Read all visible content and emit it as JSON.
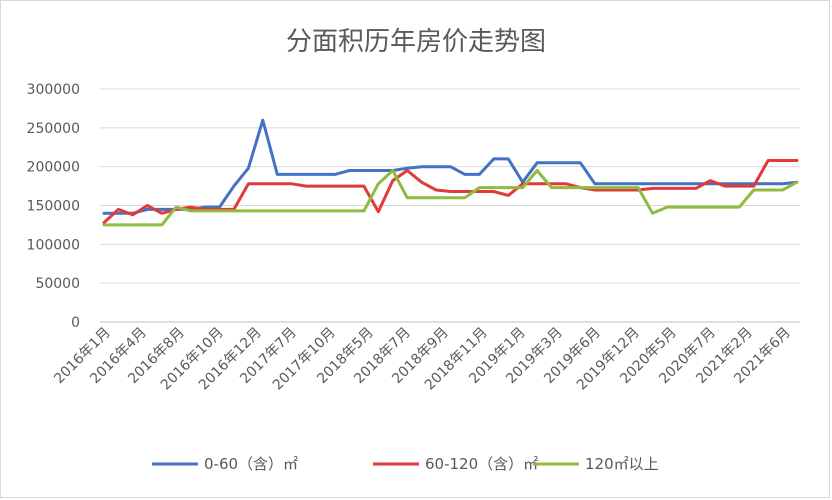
{
  "chart_data": {
    "type": "line",
    "title": "分面积历年房价走势图",
    "xlabel": "",
    "ylabel": "",
    "ylim": [
      0,
      300000
    ],
    "yticks": [
      0,
      50000,
      100000,
      150000,
      200000,
      250000,
      300000
    ],
    "grid": true,
    "legend_position": "bottom",
    "x_tick_labels": [
      "2016年1月",
      "2016年4月",
      "2016年8月",
      "2016年10月",
      "2016年12月",
      "2017年7月",
      "2017年10月",
      "2018年5月",
      "2018年7月",
      "2018年9月",
      "2018年11月",
      "2019年1月",
      "2019年3月",
      "2019年6月",
      "2019年12月",
      "2020年5月",
      "2020年7月",
      "2021年2月",
      "2021年6月"
    ],
    "n_points": 49,
    "series": [
      {
        "name": "0-60（含）㎡",
        "color": "#4472c4",
        "values": [
          140000,
          140000,
          140000,
          145000,
          145000,
          145000,
          145000,
          148000,
          148000,
          175000,
          198000,
          260000,
          190000,
          190000,
          190000,
          190000,
          190000,
          195000,
          195000,
          195000,
          195000,
          198000,
          200000,
          200000,
          200000,
          190000,
          190000,
          210000,
          210000,
          180000,
          205000,
          205000,
          205000,
          205000,
          178000,
          178000,
          178000,
          178000,
          178000,
          178000,
          178000,
          178000,
          178000,
          178000,
          178000,
          178000,
          178000,
          178000,
          180000
        ]
      },
      {
        "name": "60-120（含）㎡",
        "color": "#e03a3a",
        "values": [
          128000,
          145000,
          138000,
          150000,
          140000,
          145000,
          148000,
          145000,
          145000,
          145000,
          178000,
          178000,
          178000,
          178000,
          175000,
          175000,
          175000,
          175000,
          175000,
          142000,
          182000,
          195000,
          180000,
          170000,
          168000,
          168000,
          168000,
          168000,
          163000,
          178000,
          178000,
          178000,
          178000,
          173000,
          170000,
          170000,
          170000,
          170000,
          172000,
          172000,
          172000,
          172000,
          182000,
          175000,
          175000,
          175000,
          208000,
          208000,
          208000
        ]
      },
      {
        "name": "120㎡以上",
        "color": "#8fbc3f",
        "values": [
          125000,
          125000,
          125000,
          125000,
          125000,
          148000,
          143000,
          143000,
          143000,
          143000,
          143000,
          143000,
          143000,
          143000,
          143000,
          143000,
          143000,
          143000,
          143000,
          178000,
          195000,
          160000,
          160000,
          160000,
          160000,
          160000,
          173000,
          173000,
          173000,
          173000,
          195000,
          173000,
          173000,
          173000,
          173000,
          173000,
          173000,
          173000,
          140000,
          148000,
          148000,
          148000,
          148000,
          148000,
          148000,
          170000,
          170000,
          170000,
          180000
        ]
      }
    ]
  }
}
